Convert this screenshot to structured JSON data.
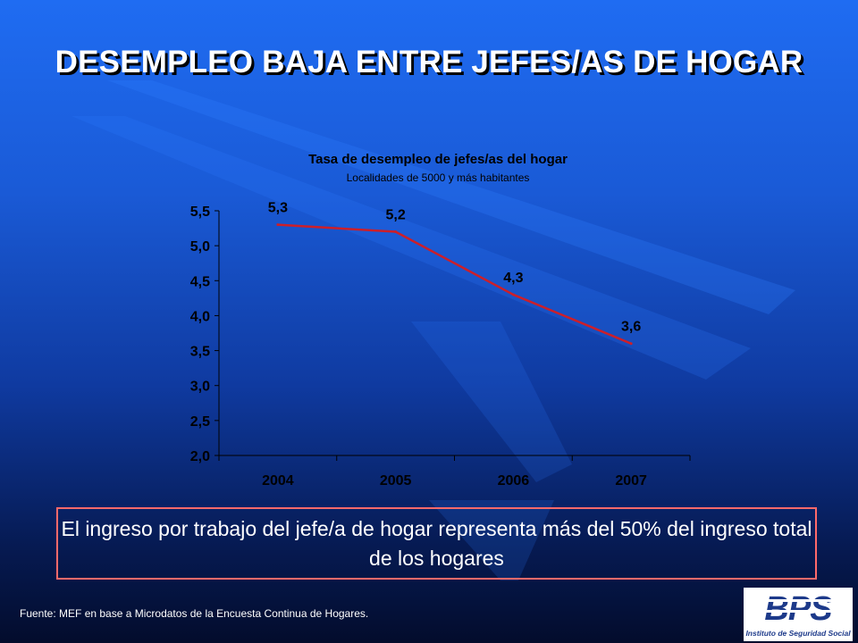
{
  "slide": {
    "title": "DESEMPLEO BAJA ENTRE JEFES/AS DE HOGAR",
    "note": "El ingreso por trabajo del jefe/a de hogar representa más del 50% del ingreso total de los hogares",
    "source": "Fuente: MEF en base a Microdatos de la Encuesta Continua de Hogares.",
    "logo": {
      "text": "BPS",
      "subtitle": "Instituto de Seguridad Social"
    },
    "colors": {
      "background": "#1a5ad6",
      "line": "#cc1f2a",
      "note_border": "#ff6a6a",
      "logo_blue": "#1d3a8a"
    }
  },
  "chart_data": {
    "type": "line",
    "title": "Tasa de desempleo de jefes/as del hogar",
    "subtitle": "Localidades de 5000 y más habitantes",
    "categories": [
      "2004",
      "2005",
      "2006",
      "2007"
    ],
    "series": [
      {
        "values": [
          5.3,
          5.2,
          4.3,
          3.6
        ],
        "labels": [
          "5,3",
          "5,2",
          "4,3",
          "3,6"
        ]
      }
    ],
    "ylim": [
      2.0,
      5.5
    ],
    "yticks": [
      2.0,
      2.5,
      3.0,
      3.5,
      4.0,
      4.5,
      5.0,
      5.5
    ],
    "ytick_labels": [
      "2,0",
      "2,5",
      "3,0",
      "3,5",
      "4,0",
      "4,5",
      "5,0",
      "5,5"
    ],
    "grid": false,
    "legend": "none"
  }
}
